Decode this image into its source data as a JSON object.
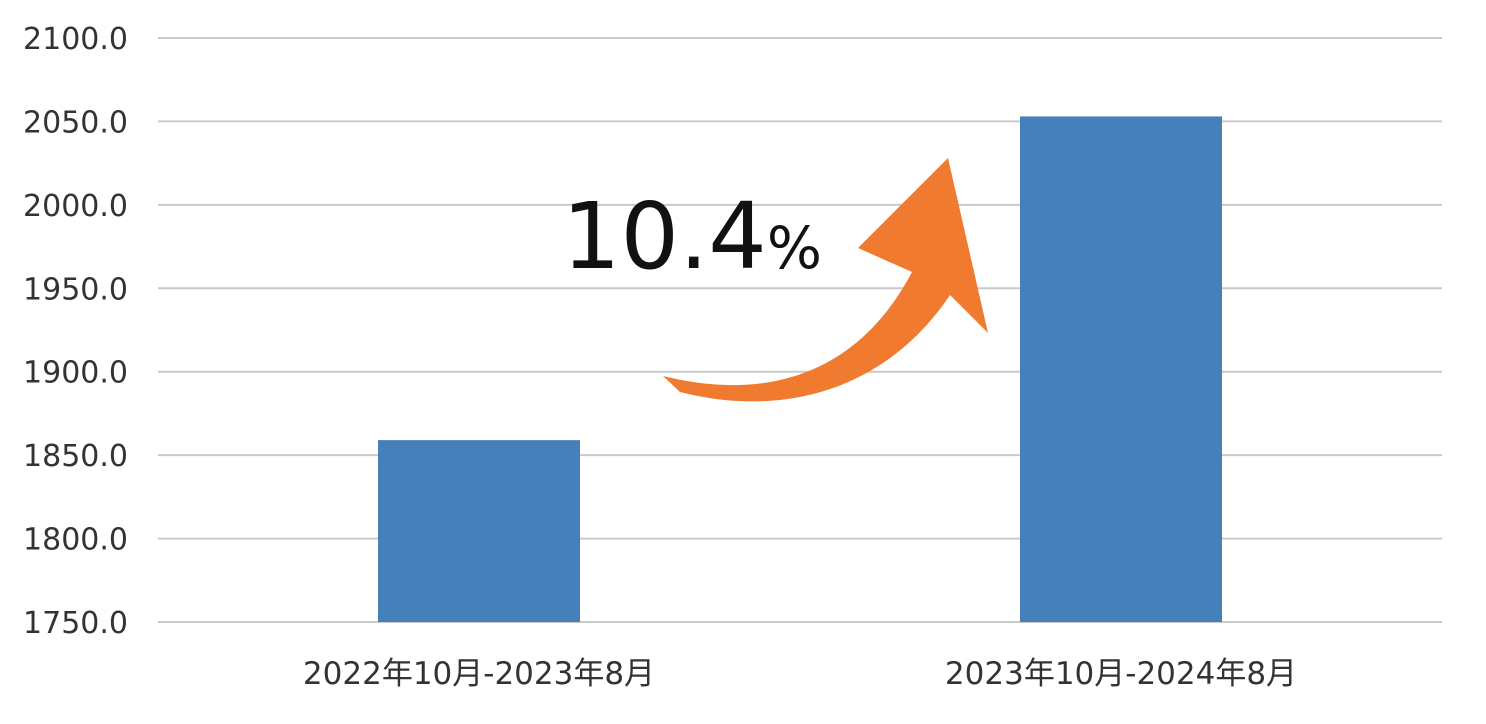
{
  "chart_data": {
    "type": "bar",
    "categories": [
      "2022年10月-2023年8月",
      "2023年10月-2024年8月"
    ],
    "values": [
      1859,
      2053
    ],
    "ylim": [
      1750,
      2100
    ],
    "yticks": [
      "1750.0",
      "1800.0",
      "1850.0",
      "1900.0",
      "1950.0",
      "2000.0",
      "2050.0",
      "2100.0"
    ],
    "grid": true,
    "bar_color": "#4580bb",
    "annotation": {
      "value": "10.4",
      "unit": "%",
      "arrow_color": "#f07a30"
    }
  }
}
